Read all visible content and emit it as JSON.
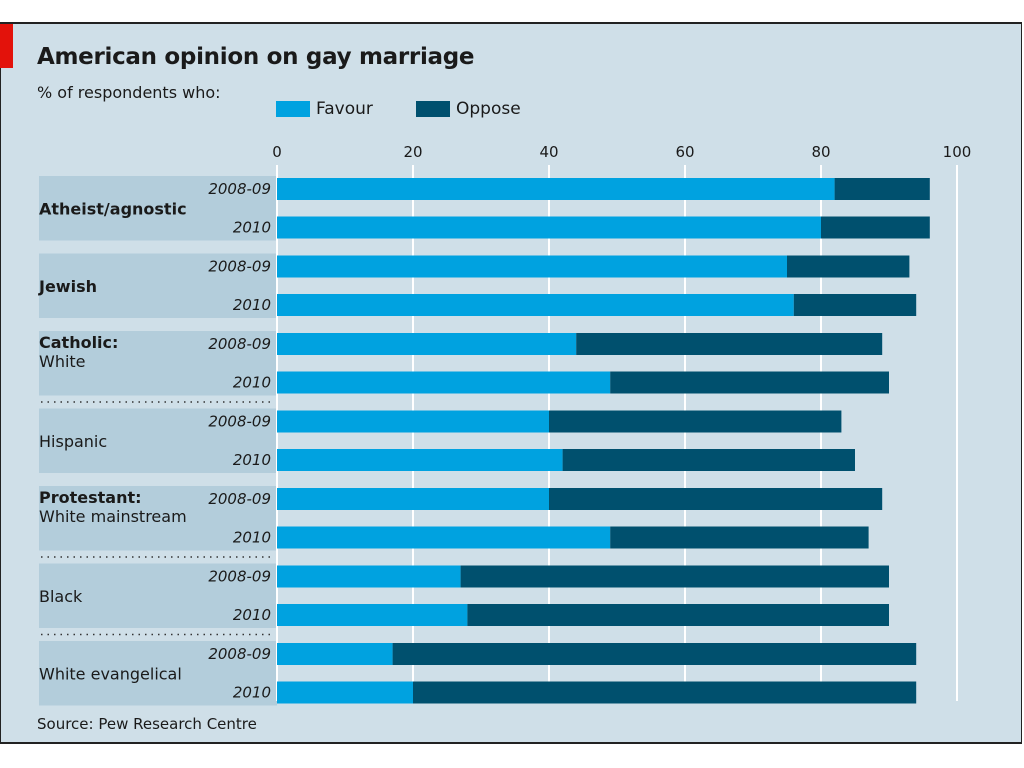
{
  "chart_data": {
    "type": "bar",
    "orientation": "horizontal",
    "stacked": true,
    "title": "American opinion on gay marriage",
    "subtitle": "% of respondents who:",
    "source": "Source: Pew Research Centre",
    "xlim": [
      0,
      100
    ],
    "xticks": [
      0,
      20,
      40,
      60,
      80,
      100
    ],
    "legend_position": "top",
    "series": [
      {
        "name": "Favour",
        "color": "#00a2e0"
      },
      {
        "name": "Oppose",
        "color": "#00506e"
      }
    ],
    "groups": [
      {
        "heading": "Atheist/agnostic",
        "label": "",
        "shaded": true,
        "separator_before": false,
        "rows": [
          {
            "year": "2008-09",
            "favour": 82,
            "oppose": 14
          },
          {
            "year": "2010",
            "favour": 80,
            "oppose": 16
          }
        ]
      },
      {
        "heading": "Jewish",
        "label": "",
        "shaded": true,
        "separator_before": false,
        "rows": [
          {
            "year": "2008-09",
            "favour": 75,
            "oppose": 18
          },
          {
            "year": "2010",
            "favour": 76,
            "oppose": 18
          }
        ]
      },
      {
        "heading": "Catholic:",
        "label": "White",
        "shaded": true,
        "separator_before": false,
        "rows": [
          {
            "year": "2008-09",
            "favour": 44,
            "oppose": 45
          },
          {
            "year": "2010",
            "favour": 49,
            "oppose": 41
          }
        ]
      },
      {
        "heading": "",
        "label": "Hispanic",
        "shaded": true,
        "separator_before": true,
        "rows": [
          {
            "year": "2008-09",
            "favour": 40,
            "oppose": 43
          },
          {
            "year": "2010",
            "favour": 42,
            "oppose": 43
          }
        ]
      },
      {
        "heading": "Protestant:",
        "label": "White mainstream",
        "shaded": true,
        "separator_before": false,
        "rows": [
          {
            "year": "2008-09",
            "favour": 40,
            "oppose": 49
          },
          {
            "year": "2010",
            "favour": 49,
            "oppose": 38
          }
        ]
      },
      {
        "heading": "",
        "label": "Black",
        "shaded": true,
        "separator_before": true,
        "rows": [
          {
            "year": "2008-09",
            "favour": 27,
            "oppose": 63
          },
          {
            "year": "2010",
            "favour": 28,
            "oppose": 62
          }
        ]
      },
      {
        "heading": "",
        "label": "White evangelical",
        "shaded": true,
        "separator_before": true,
        "rows": [
          {
            "year": "2008-09",
            "favour": 17,
            "oppose": 77
          },
          {
            "year": "2010",
            "favour": 20,
            "oppose": 74
          }
        ]
      }
    ]
  }
}
